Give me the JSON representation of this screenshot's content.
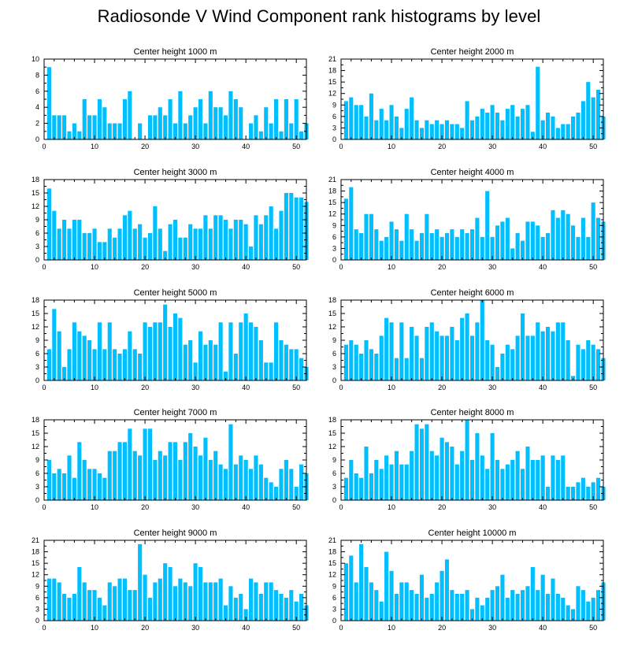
{
  "title": "Radiosonde V Wind Component rank histograms by level",
  "colors": {
    "bar": "#00bfff",
    "axis": "#000000",
    "background": "#ffffff"
  },
  "chart_data": [
    {
      "type": "bar",
      "title": "Center height 1000 m",
      "xlim": [
        0,
        52
      ],
      "ylim": [
        0,
        10
      ],
      "xticks": [
        0,
        10,
        20,
        30,
        40,
        50
      ],
      "yticks": [
        0,
        2,
        4,
        6,
        8,
        10
      ],
      "values": [
        9,
        3,
        3,
        3,
        1,
        2,
        1,
        5,
        3,
        3,
        5,
        4,
        2,
        2,
        2,
        5,
        6,
        0,
        2,
        0,
        3,
        3,
        4,
        3,
        5,
        2,
        6,
        2,
        3,
        4,
        5,
        2,
        6,
        4,
        4,
        3,
        6,
        5,
        4,
        0,
        2,
        3,
        1,
        4,
        2,
        5,
        1,
        5,
        2,
        5,
        1,
        2
      ]
    },
    {
      "type": "bar",
      "title": "Center height 2000 m",
      "xlim": [
        0,
        52
      ],
      "ylim": [
        0,
        21
      ],
      "xticks": [
        0,
        10,
        20,
        30,
        40,
        50
      ],
      "yticks": [
        0,
        3,
        6,
        9,
        12,
        15,
        18,
        21
      ],
      "values": [
        10,
        11,
        9,
        9,
        6,
        12,
        5,
        8,
        5,
        9,
        6,
        3,
        8,
        11,
        5,
        3,
        5,
        4,
        5,
        4,
        5,
        4,
        4,
        3,
        10,
        5,
        6,
        8,
        7,
        9,
        7,
        5,
        8,
        9,
        6,
        8,
        9,
        2,
        19,
        5,
        7,
        6,
        3,
        4,
        4,
        6,
        7,
        10,
        15,
        11,
        13,
        6
      ]
    },
    {
      "type": "bar",
      "title": "Center height 3000 m",
      "xlim": [
        0,
        52
      ],
      "ylim": [
        0,
        18
      ],
      "xticks": [
        0,
        10,
        20,
        30,
        40,
        50
      ],
      "yticks": [
        0,
        3,
        6,
        9,
        12,
        15,
        18
      ],
      "values": [
        16,
        11,
        7,
        9,
        7,
        9,
        9,
        6,
        6,
        7,
        4,
        4,
        7,
        5,
        7,
        10,
        11,
        7,
        8,
        5,
        6,
        12,
        7,
        2,
        8,
        9,
        5,
        5,
        8,
        7,
        7,
        10,
        7,
        10,
        10,
        9,
        7,
        9,
        9,
        8,
        3,
        10,
        8,
        10,
        12,
        7,
        11,
        15,
        15,
        14,
        14,
        13
      ]
    },
    {
      "type": "bar",
      "title": "Center height 4000 m",
      "xlim": [
        0,
        52
      ],
      "ylim": [
        0,
        21
      ],
      "xticks": [
        0,
        10,
        20,
        30,
        40,
        50
      ],
      "yticks": [
        0,
        3,
        6,
        9,
        12,
        15,
        18,
        21
      ],
      "values": [
        16,
        19,
        8,
        7,
        12,
        12,
        8,
        5,
        6,
        10,
        8,
        5,
        12,
        8,
        5,
        7,
        12,
        7,
        8,
        6,
        7,
        8,
        6,
        8,
        7,
        8,
        11,
        6,
        18,
        6,
        9,
        10,
        11,
        3,
        7,
        5,
        10,
        10,
        9,
        6,
        7,
        13,
        11,
        13,
        12,
        9,
        6,
        11,
        6,
        15,
        11,
        10
      ]
    },
    {
      "type": "bar",
      "title": "Center height 5000 m",
      "xlim": [
        0,
        52
      ],
      "ylim": [
        0,
        18
      ],
      "xticks": [
        0,
        10,
        20,
        30,
        40,
        50
      ],
      "yticks": [
        0,
        3,
        6,
        9,
        12,
        15,
        18
      ],
      "values": [
        7,
        16,
        11,
        3,
        7,
        13,
        11,
        10,
        9,
        7,
        13,
        7,
        13,
        7,
        6,
        7,
        11,
        7,
        6,
        13,
        12,
        13,
        13,
        17,
        12,
        15,
        14,
        8,
        9,
        4,
        11,
        8,
        9,
        8,
        13,
        2,
        13,
        6,
        13,
        15,
        13,
        12,
        9,
        4,
        4,
        13,
        9,
        8,
        7,
        7,
        5,
        3
      ]
    },
    {
      "type": "bar",
      "title": "Center height 6000 m",
      "xlim": [
        0,
        52
      ],
      "ylim": [
        0,
        18
      ],
      "xticks": [
        0,
        10,
        20,
        30,
        40,
        50
      ],
      "yticks": [
        0,
        3,
        6,
        9,
        12,
        15,
        18
      ],
      "values": [
        8,
        9,
        8,
        6,
        9,
        7,
        6,
        10,
        14,
        13,
        5,
        13,
        5,
        12,
        10,
        5,
        12,
        13,
        11,
        10,
        10,
        12,
        9,
        14,
        15,
        10,
        13,
        18,
        9,
        8,
        3,
        6,
        8,
        7,
        10,
        15,
        10,
        10,
        13,
        11,
        12,
        11,
        13,
        13,
        9,
        1,
        8,
        7,
        9,
        8,
        7,
        5
      ]
    },
    {
      "type": "bar",
      "title": "Center height 7000 m",
      "xlim": [
        0,
        52
      ],
      "ylim": [
        0,
        18
      ],
      "xticks": [
        0,
        10,
        20,
        30,
        40,
        50
      ],
      "yticks": [
        0,
        3,
        6,
        9,
        12,
        15,
        18
      ],
      "values": [
        9,
        6,
        7,
        6,
        10,
        5,
        13,
        9,
        7,
        7,
        6,
        5,
        11,
        11,
        13,
        13,
        16,
        11,
        10,
        16,
        16,
        9,
        11,
        10,
        13,
        13,
        9,
        13,
        15,
        12,
        10,
        14,
        9,
        11,
        8,
        7,
        17,
        8,
        10,
        9,
        7,
        10,
        8,
        5,
        4,
        3,
        7,
        9,
        7,
        3,
        8,
        6
      ]
    },
    {
      "type": "bar",
      "title": "Center height 8000 m",
      "xlim": [
        0,
        52
      ],
      "ylim": [
        0,
        18
      ],
      "xticks": [
        0,
        10,
        20,
        30,
        40,
        50
      ],
      "yticks": [
        0,
        3,
        6,
        9,
        12,
        15,
        18
      ],
      "values": [
        5,
        9,
        6,
        5,
        12,
        6,
        9,
        7,
        10,
        8,
        11,
        8,
        8,
        11,
        17,
        16,
        17,
        11,
        10,
        14,
        13,
        12,
        8,
        11,
        18,
        9,
        15,
        10,
        7,
        15,
        9,
        7,
        8,
        9,
        11,
        7,
        12,
        9,
        9,
        10,
        3,
        10,
        9,
        10,
        3,
        3,
        4,
        5,
        3,
        4,
        5,
        3
      ]
    },
    {
      "type": "bar",
      "title": "Center height 9000 m",
      "xlim": [
        0,
        52
      ],
      "ylim": [
        0,
        21
      ],
      "xticks": [
        0,
        10,
        20,
        30,
        40,
        50
      ],
      "yticks": [
        0,
        3,
        6,
        9,
        12,
        15,
        18,
        21
      ],
      "values": [
        11,
        11,
        10,
        7,
        6,
        7,
        14,
        10,
        8,
        8,
        6,
        4,
        10,
        9,
        11,
        11,
        8,
        8,
        20,
        12,
        6,
        10,
        11,
        15,
        14,
        9,
        11,
        10,
        9,
        15,
        14,
        10,
        10,
        10,
        11,
        4,
        9,
        6,
        7,
        3,
        11,
        10,
        7,
        10,
        10,
        8,
        7,
        6,
        8,
        5,
        7,
        4
      ]
    },
    {
      "type": "bar",
      "title": "Center height 10000 m",
      "xlim": [
        0,
        52
      ],
      "ylim": [
        0,
        21
      ],
      "xticks": [
        0,
        10,
        20,
        30,
        40,
        50
      ],
      "yticks": [
        0,
        3,
        6,
        9,
        12,
        15,
        18,
        21
      ],
      "values": [
        15,
        17,
        10,
        20,
        14,
        10,
        8,
        5,
        18,
        13,
        7,
        10,
        10,
        8,
        7,
        12,
        6,
        7,
        10,
        13,
        16,
        8,
        7,
        7,
        8,
        3,
        6,
        4,
        6,
        8,
        9,
        12,
        6,
        8,
        7,
        8,
        9,
        14,
        8,
        12,
        7,
        11,
        7,
        6,
        4,
        3,
        9,
        8,
        5,
        6,
        8,
        10
      ]
    }
  ]
}
